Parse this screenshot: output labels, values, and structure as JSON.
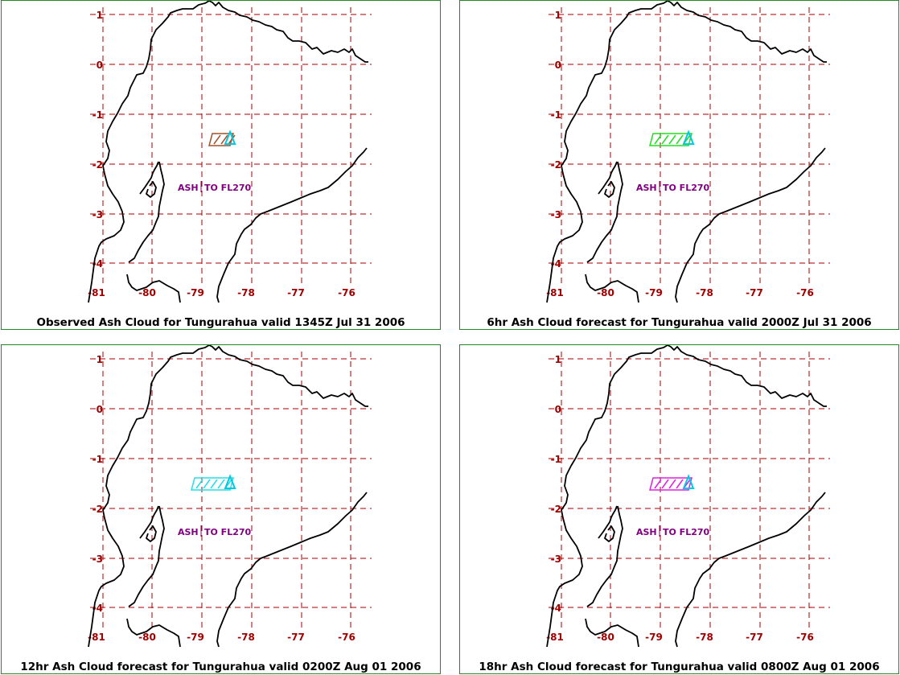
{
  "colors": {
    "grid": "#a00000",
    "coast": "#000000",
    "border": "#1f8a1f",
    "ash_label": "#800080",
    "volcano": "#00c8e0"
  },
  "axes": {
    "lat_labels": [
      "1",
      "0",
      "-1",
      "-2",
      "-3",
      "-4"
    ],
    "lon_labels": [
      "-81",
      "-80",
      "-79",
      "-78",
      "-77",
      "-76"
    ]
  },
  "ash_label": {
    "left": "ASH",
    "right": "TO FL270"
  },
  "panels": [
    {
      "caption": "Observed Ash Cloud for Tungurahua valid 1345Z Jul 31 2006",
      "cloud_color": "#a0522d",
      "cloud_extent": "small"
    },
    {
      "caption": "6hr Ash Cloud forecast for Tungurahua valid 2000Z Jul 31 2006",
      "cloud_color": "#22dd22",
      "cloud_extent": "wide"
    },
    {
      "caption": "12hr Ash Cloud forecast for Tungurahua valid 0200Z Aug 01 2006",
      "cloud_color": "#22e0e8",
      "cloud_extent": "wide"
    },
    {
      "caption": "18hr Ash Cloud forecast for Tungurahua valid 0800Z Aug 01 2006",
      "cloud_color": "#e020e0",
      "cloud_extent": "wide"
    }
  ]
}
